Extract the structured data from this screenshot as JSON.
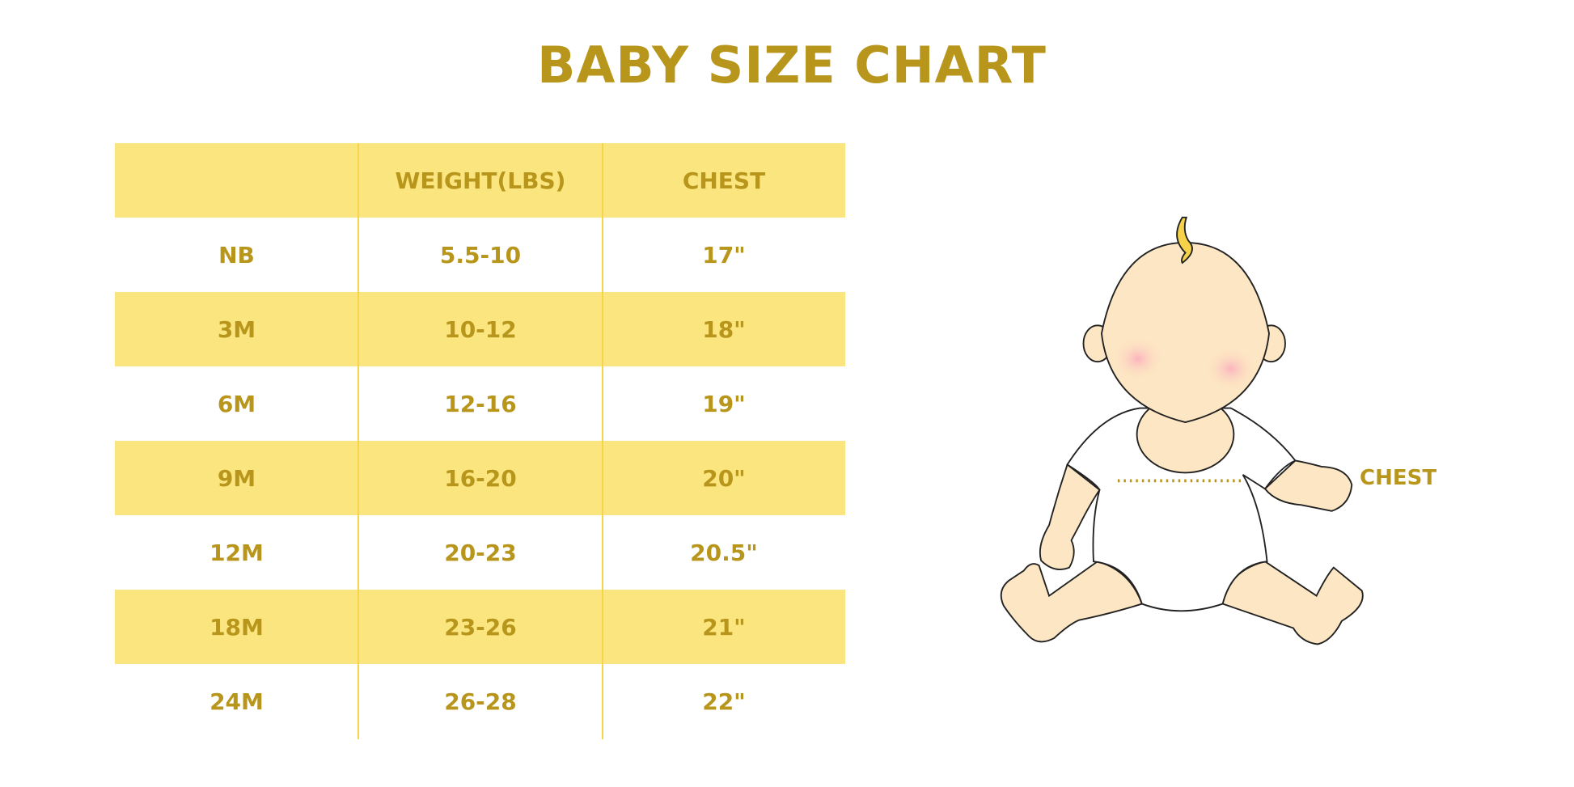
{
  "title": "BABY SIZE CHART",
  "table": {
    "headers": [
      "",
      "WEIGHT(LBS)",
      "CHEST"
    ],
    "rows": [
      [
        "NB",
        "5.5-10",
        "17\""
      ],
      [
        "3M",
        "10-12",
        "18\""
      ],
      [
        "6M",
        "12-16",
        "19\""
      ],
      [
        "9M",
        "16-20",
        "20\""
      ],
      [
        "12M",
        "20-23",
        "20.5\""
      ],
      [
        "18M",
        "23-26",
        "21\""
      ],
      [
        "24M",
        "26-28",
        "22\""
      ]
    ]
  },
  "illustration": {
    "label": "CHEST"
  },
  "colors": {
    "text": "#b8961c",
    "band": "#fbe57e",
    "divider": "#f7d54a",
    "skin": "#fde6c3"
  }
}
